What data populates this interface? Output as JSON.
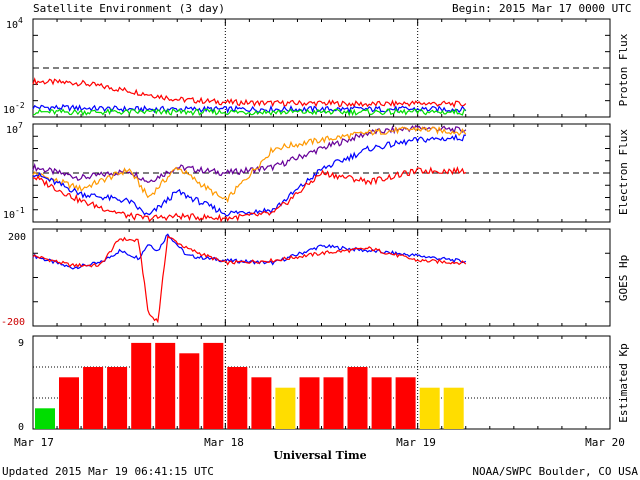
{
  "header": {
    "title": "Satellite Environment (3 day)",
    "begin_label": "Begin:",
    "begin_value": "2015 Mar 17 0000 UTC"
  },
  "footer": {
    "updated": "Updated 2015 Mar 19 06:41:15 UTC",
    "source": "NOAA/SWPC Boulder, CO USA"
  },
  "x_axis": {
    "label": "Universal Time",
    "ticks": [
      "Mar 17",
      "Mar 18",
      "Mar 19",
      "Mar 20"
    ]
  },
  "colors": {
    "red": "#ff0000",
    "blue": "#0000ff",
    "green": "#00dd00",
    "orange": "#ff9900",
    "purple": "#660099",
    "yellow": "#ffdd00",
    "black": "#000000"
  },
  "chart_data": [
    {
      "type": "line",
      "name": "proton",
      "ylabel": "Proton Flux",
      "y_top_label": "10",
      "y_top_exp": "4",
      "y_bottom_label": "10",
      "y_bottom_exp": "-2",
      "yscale": "log",
      "ylim": [
        0.01,
        10000
      ],
      "threshold": 10,
      "x_days": [
        0.0,
        0.25,
        0.5,
        0.75,
        1.0,
        1.25,
        1.5,
        1.75,
        2.0,
        2.25
      ],
      "series": [
        {
          "color": "red",
          "values": [
            1.5,
            1.2,
            0.4,
            0.12,
            0.08,
            0.07,
            0.07,
            0.06,
            0.07,
            0.06
          ]
        },
        {
          "color": "blue",
          "values": [
            0.04,
            0.035,
            0.03,
            0.03,
            0.03,
            0.03,
            0.03,
            0.03,
            0.03,
            0.03
          ]
        },
        {
          "color": "green",
          "values": [
            0.02,
            0.02,
            0.02,
            0.02,
            0.02,
            0.02,
            0.02,
            0.02,
            0.02,
            0.02
          ]
        }
      ]
    },
    {
      "type": "line",
      "name": "electron",
      "ylabel": "Electron Flux",
      "y_top_label": "10",
      "y_top_exp": "7",
      "y_bottom_label": "10",
      "y_bottom_exp": "-1",
      "yscale": "log",
      "ylim": [
        0.1,
        10000000
      ],
      "threshold": 1000,
      "x_days": [
        0.0,
        0.25,
        0.5,
        0.6,
        0.75,
        1.0,
        1.25,
        1.5,
        1.75,
        2.0,
        2.25
      ],
      "series": [
        {
          "color": "purple",
          "values": [
            3000,
            400,
            1500,
            200,
            3000,
            1000,
            3000,
            100000,
            2000000,
            5000000,
            3000000
          ]
        },
        {
          "color": "orange",
          "values": [
            1000,
            50,
            2000,
            10,
            3000,
            5,
            100000,
            500000,
            2000000,
            4000000,
            2000000
          ]
        },
        {
          "color": "blue",
          "values": [
            1000,
            20,
            5,
            0.3,
            30,
            0.5,
            1,
            2000,
            100000,
            500000,
            800000
          ]
        },
        {
          "color": "red",
          "values": [
            500,
            5,
            0.3,
            0.2,
            0.3,
            0.2,
            0.5,
            1000,
            200,
            1500,
            1500
          ]
        }
      ]
    },
    {
      "type": "line",
      "name": "goes_hp",
      "ylabel": "GOES Hp",
      "y_top_label": "200",
      "y_bottom_label": "-200",
      "yscale": "linear",
      "ylim": [
        -200,
        200
      ],
      "x_days": [
        0.0,
        0.2,
        0.35,
        0.45,
        0.55,
        0.6,
        0.65,
        0.7,
        0.8,
        1.0,
        1.25,
        1.5,
        1.75,
        2.0,
        2.25
      ],
      "series": [
        {
          "color": "blue",
          "values": [
            90,
            40,
            60,
            110,
            80,
            140,
            110,
            180,
            90,
            70,
            60,
            130,
            110,
            90,
            65
          ]
        },
        {
          "color": "red",
          "values": [
            90,
            50,
            50,
            160,
            150,
            -150,
            -180,
            170,
            120,
            60,
            70,
            100,
            120,
            70,
            60
          ]
        }
      ]
    },
    {
      "type": "bar",
      "name": "estimated_kp",
      "ylabel": "Estimated Kp",
      "y_ticks": [
        "0",
        "9"
      ],
      "ylim": [
        0,
        9
      ],
      "bar_hours": [
        0,
        3,
        6,
        9,
        12,
        15,
        18,
        21,
        24,
        27,
        30,
        33,
        36,
        39,
        42,
        45,
        48,
        51
      ],
      "values": [
        2,
        5,
        6,
        6,
        8.33,
        8.33,
        7.33,
        8.33,
        6,
        5,
        4,
        5,
        5,
        6,
        5,
        5,
        4,
        4
      ],
      "bar_colors": [
        "green",
        "red",
        "red",
        "red",
        "red",
        "red",
        "red",
        "red",
        "red",
        "red",
        "yellow",
        "red",
        "red",
        "red",
        "red",
        "red",
        "yellow",
        "yellow"
      ]
    }
  ]
}
